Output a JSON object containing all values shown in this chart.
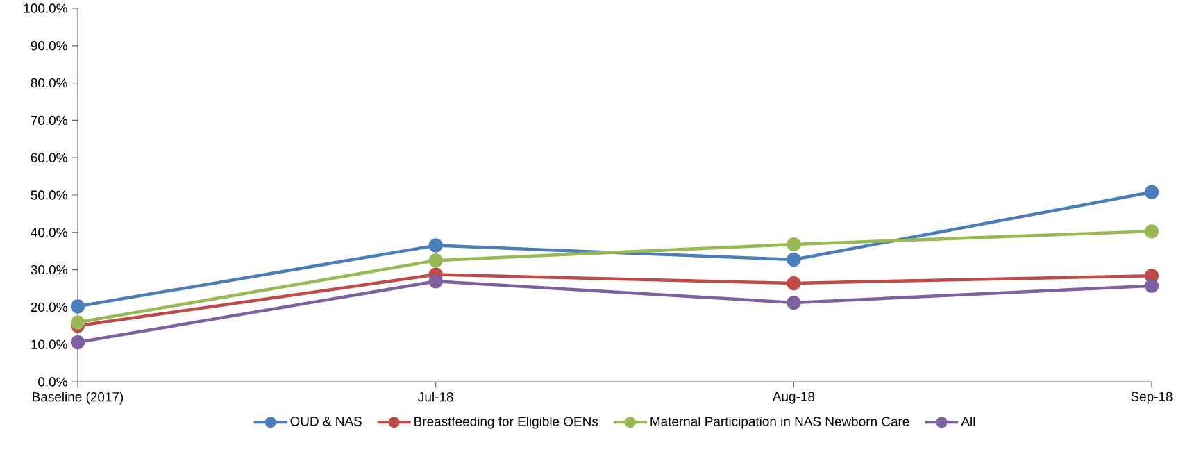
{
  "chart_data": {
    "type": "line",
    "categories": [
      "Baseline (2017)",
      "Jul-18",
      "Aug-18",
      "Sep-18"
    ],
    "series": [
      {
        "name": "OUD & NAS",
        "color": "#4a7ebb",
        "values": [
          20.2,
          36.5,
          32.7,
          50.8
        ]
      },
      {
        "name": "Breastfeeding for Eligible OENs",
        "color": "#be4b48",
        "values": [
          15.0,
          28.7,
          26.4,
          28.4
        ]
      },
      {
        "name": "Maternal Participation in NAS Newborn Care",
        "color": "#98b954",
        "values": [
          15.9,
          32.5,
          36.8,
          40.3
        ]
      },
      {
        "name": "All",
        "color": "#7d60a0",
        "values": [
          10.6,
          26.9,
          21.2,
          25.7
        ]
      }
    ],
    "ylim": [
      0,
      100
    ],
    "yticks": [
      {
        "value": 0,
        "label": "0.0%"
      },
      {
        "value": 10,
        "label": "10.0%"
      },
      {
        "value": 20,
        "label": "20.0%"
      },
      {
        "value": 30,
        "label": "30.0%"
      },
      {
        "value": 40,
        "label": "40.0%"
      },
      {
        "value": 50,
        "label": "50.0%"
      },
      {
        "value": 60,
        "label": "60.0%"
      },
      {
        "value": 70,
        "label": "70.0%"
      },
      {
        "value": 80,
        "label": "80.0%"
      },
      {
        "value": 90,
        "label": "90.0%"
      },
      {
        "value": 100,
        "label": "100.0%"
      }
    ],
    "grid": false,
    "legend": "bottom",
    "marker": "circle",
    "line_style": "solid"
  }
}
